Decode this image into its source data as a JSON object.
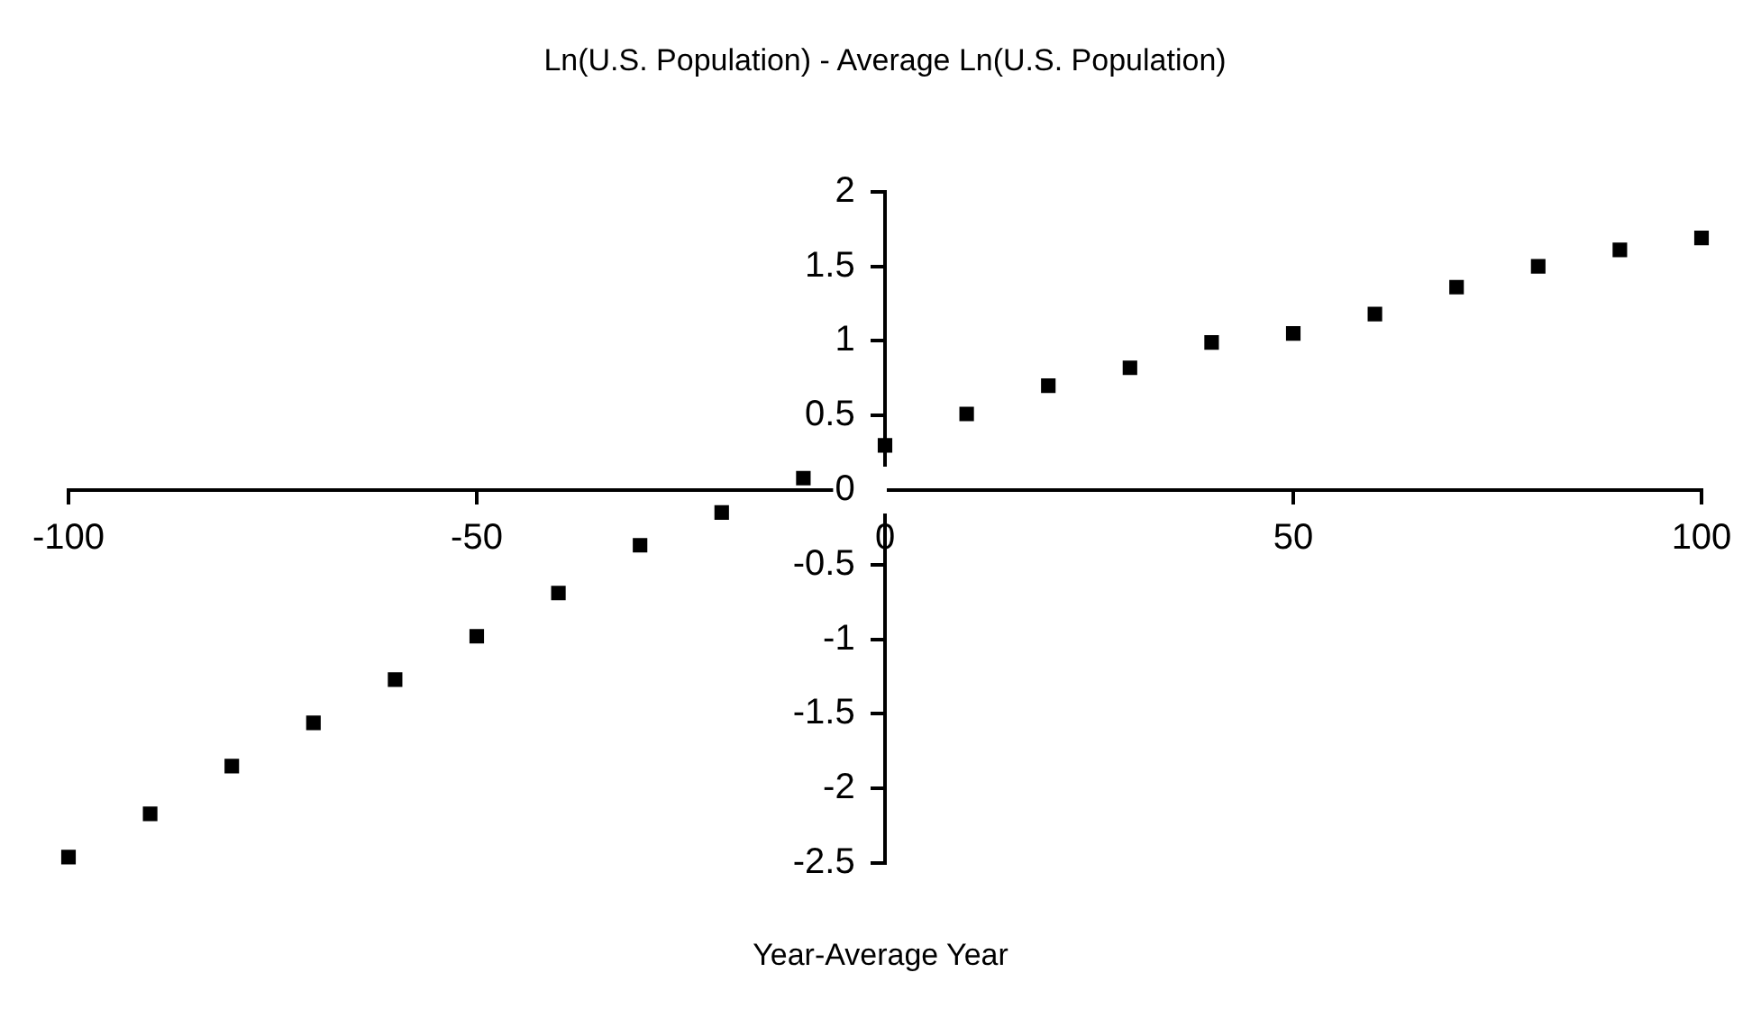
{
  "chart_data": {
    "type": "scatter",
    "title": "Ln(U.S. Population) - Average Ln(U.S. Population)",
    "xlabel": "Year-Average Year",
    "x": [
      -100,
      -90,
      -80,
      -70,
      -60,
      -50,
      -40,
      -30,
      -20,
      -10,
      0,
      10,
      20,
      30,
      40,
      50,
      60,
      70,
      80,
      90,
      100
    ],
    "series": [
      {
        "color": "#000000",
        "values": [
          -2.46,
          -2.17,
          -1.85,
          -1.56,
          -1.27,
          -0.98,
          -0.69,
          -0.37,
          -0.15,
          0.08,
          0.3,
          0.51,
          0.7,
          0.82,
          0.99,
          1.05,
          1.18,
          1.36,
          1.5,
          1.61,
          1.69
        ]
      }
    ],
    "xlim": [
      -100,
      100
    ],
    "xticks": [
      -100,
      -50,
      0,
      50,
      100
    ],
    "ylim": [
      -2.5,
      2
    ],
    "yticks": [
      -2.5,
      -2,
      -1.5,
      -1,
      -0.5,
      0,
      0.5,
      1,
      1.5,
      2
    ],
    "marker": "square",
    "grid": false,
    "legend": false
  }
}
